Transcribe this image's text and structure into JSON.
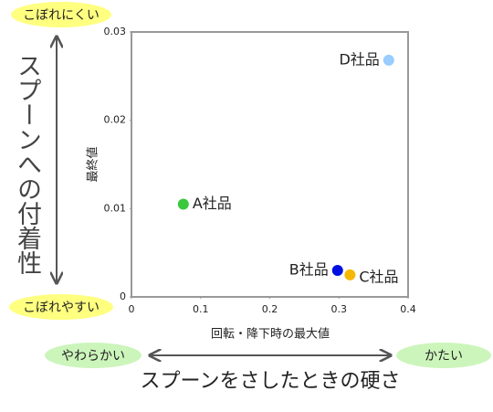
{
  "chart_data": {
    "type": "scatter",
    "x_label": "回転・降下時の最大値",
    "y_label": "最終値",
    "xlim": [
      0,
      0.4
    ],
    "xticks": [
      0,
      0.1,
      0.2,
      0.3,
      0.4
    ],
    "ylim": [
      0,
      0.03
    ],
    "yticks": [
      0,
      0.01,
      0.02,
      0.03
    ],
    "series": [
      {
        "name": "A社品",
        "color": "#3cc83c",
        "x": [
          0.075
        ],
        "values": [
          0.0105
        ]
      },
      {
        "name": "B社品",
        "color": "#0010e0",
        "x": [
          0.298
        ],
        "values": [
          0.003
        ]
      },
      {
        "name": "C社品",
        "color": "#f5b800",
        "x": [
          0.316
        ],
        "values": [
          0.0025
        ]
      },
      {
        "name": "D社品",
        "color": "#99ccff",
        "x": [
          0.372
        ],
        "values": [
          0.0268
        ]
      }
    ]
  },
  "annotations": {
    "top": "こぼれにくい",
    "bottom": "こぼれやすい",
    "vertical": "スプーンへの付着性",
    "left": "やわらかい",
    "right": "かたい",
    "horizontal": "スプーンをさしたときの硬さ"
  }
}
